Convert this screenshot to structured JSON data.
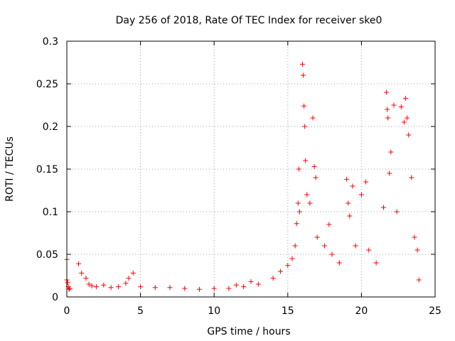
{
  "chart_data": {
    "type": "scatter",
    "title": "Day 256 of 2018, Rate Of TEC Index for receiver ske0",
    "xlabel": "GPS time / hours",
    "ylabel": "ROTI / TECUs",
    "xlim": [
      0,
      25
    ],
    "ylim": [
      0,
      0.3
    ],
    "xticks": [
      0,
      5,
      10,
      15,
      20,
      25
    ],
    "xtick_labels": [
      "0",
      "5",
      "10",
      "15",
      "20",
      "25"
    ],
    "yticks": [
      0,
      0.05,
      0.1,
      0.15,
      0.2,
      0.25,
      0.3
    ],
    "ytick_labels": [
      "0",
      "0.05",
      "0.1",
      "0.15",
      "0.2",
      "0.25",
      "0.3"
    ],
    "grid": true,
    "legend": "none",
    "marker": "plus",
    "color": "#ff0000",
    "series": [
      {
        "points": [
          [
            0.0,
            0.044
          ],
          [
            0.0,
            0.02
          ],
          [
            0.05,
            0.017
          ],
          [
            0.1,
            0.012
          ],
          [
            0.15,
            0.009
          ],
          [
            0.2,
            0.01
          ],
          [
            0.8,
            0.039
          ],
          [
            1.0,
            0.028
          ],
          [
            1.3,
            0.022
          ],
          [
            1.5,
            0.015
          ],
          [
            1.7,
            0.013
          ],
          [
            2.0,
            0.012
          ],
          [
            2.5,
            0.014
          ],
          [
            3.0,
            0.011
          ],
          [
            3.5,
            0.012
          ],
          [
            4.0,
            0.016
          ],
          [
            4.2,
            0.022
          ],
          [
            4.5,
            0.028
          ],
          [
            5.0,
            0.012
          ],
          [
            6.0,
            0.011
          ],
          [
            7.0,
            0.011
          ],
          [
            8.0,
            0.01
          ],
          [
            9.0,
            0.009
          ],
          [
            10.0,
            0.01
          ],
          [
            11.0,
            0.01
          ],
          [
            11.5,
            0.014
          ],
          [
            12.0,
            0.012
          ],
          [
            12.5,
            0.018
          ],
          [
            13.0,
            0.015
          ],
          [
            14.0,
            0.022
          ],
          [
            14.5,
            0.03
          ],
          [
            15.0,
            0.037
          ],
          [
            15.3,
            0.045
          ],
          [
            15.5,
            0.06
          ],
          [
            15.6,
            0.086
          ],
          [
            15.7,
            0.11
          ],
          [
            15.75,
            0.15
          ],
          [
            15.8,
            0.1
          ],
          [
            16.0,
            0.273
          ],
          [
            16.05,
            0.26
          ],
          [
            16.1,
            0.224
          ],
          [
            16.15,
            0.2
          ],
          [
            16.2,
            0.16
          ],
          [
            16.3,
            0.12
          ],
          [
            16.5,
            0.11
          ],
          [
            16.7,
            0.21
          ],
          [
            16.8,
            0.153
          ],
          [
            16.9,
            0.14
          ],
          [
            17.0,
            0.07
          ],
          [
            17.5,
            0.06
          ],
          [
            17.8,
            0.085
          ],
          [
            18.0,
            0.05
          ],
          [
            18.5,
            0.04
          ],
          [
            19.0,
            0.138
          ],
          [
            19.1,
            0.11
          ],
          [
            19.2,
            0.095
          ],
          [
            19.4,
            0.13
          ],
          [
            19.6,
            0.06
          ],
          [
            20.0,
            0.12
          ],
          [
            20.3,
            0.135
          ],
          [
            20.5,
            0.055
          ],
          [
            21.0,
            0.04
          ],
          [
            21.5,
            0.105
          ],
          [
            21.7,
            0.24
          ],
          [
            21.75,
            0.22
          ],
          [
            21.8,
            0.21
          ],
          [
            21.9,
            0.145
          ],
          [
            22.0,
            0.17
          ],
          [
            22.2,
            0.225
          ],
          [
            22.4,
            0.1
          ],
          [
            22.7,
            0.223
          ],
          [
            22.9,
            0.205
          ],
          [
            23.0,
            0.233
          ],
          [
            23.1,
            0.21
          ],
          [
            23.2,
            0.19
          ],
          [
            23.4,
            0.14
          ],
          [
            23.6,
            0.07
          ],
          [
            23.8,
            0.055
          ],
          [
            23.9,
            0.02
          ]
        ]
      }
    ]
  }
}
